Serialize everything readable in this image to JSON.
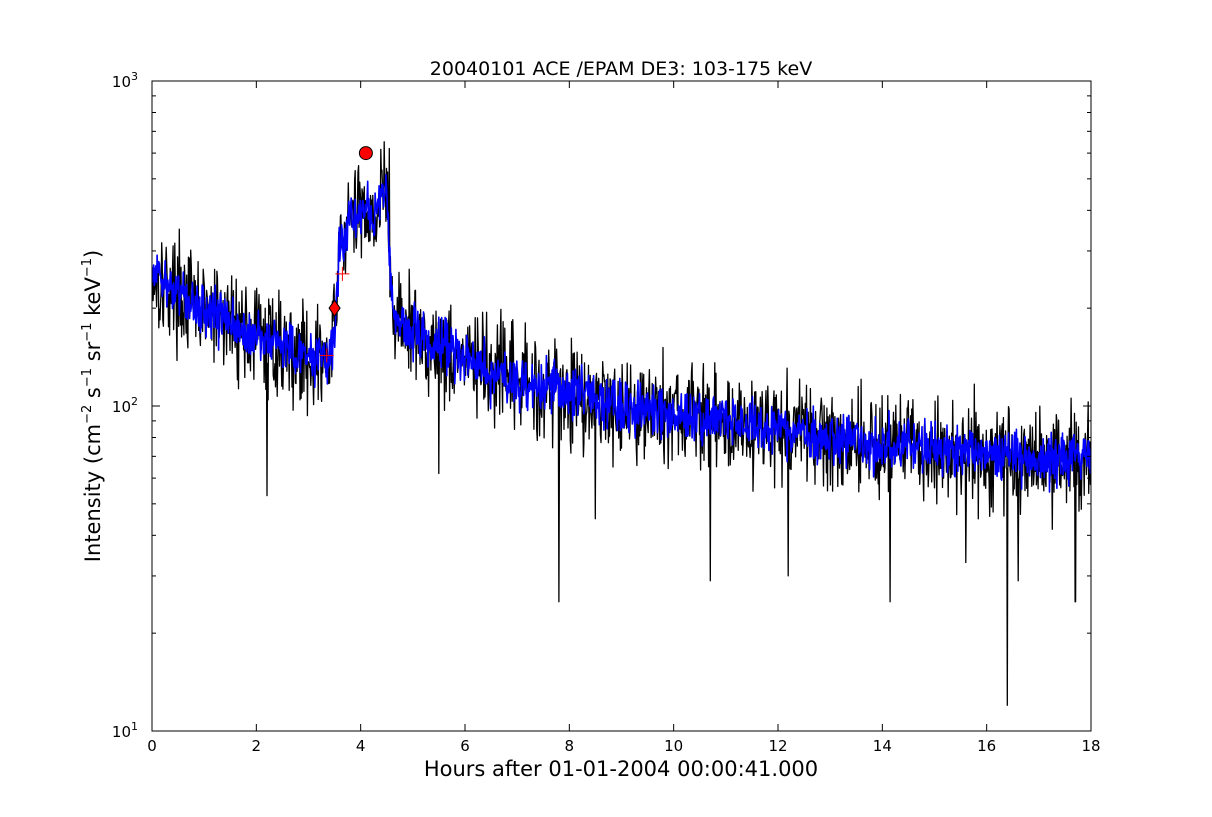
{
  "chart_data": {
    "type": "line",
    "title": "20040101 ACE /EPAM DE3: 103-175 keV",
    "xlabel": "Hours after 01-01-2004 00:00:41.000",
    "ylabel": {
      "prefix": "Intensity (cm",
      "exp1": "−2",
      "mid1": " s",
      "exp2": "−1",
      "mid2": " sr",
      "exp3": "−1",
      "mid3": " keV",
      "exp4": "−1",
      "suffix": ")"
    },
    "xlim": [
      0,
      18
    ],
    "ylim": [
      10,
      1000
    ],
    "yscale": "log",
    "x_ticks": [
      "0",
      "2",
      "4",
      "6",
      "8",
      "10",
      "12",
      "14",
      "16",
      "18"
    ],
    "y_ticks": [
      {
        "base": "10",
        "exp": "1"
      },
      {
        "base": "10",
        "exp": "2"
      },
      {
        "base": "10",
        "exp": "3"
      }
    ],
    "grid": false,
    "series": [
      {
        "color": "#000000",
        "x": [
          0,
          0.1,
          0.2,
          0.3,
          0.4,
          0.5,
          0.6,
          0.7,
          0.8,
          0.9,
          1.0,
          1.2,
          1.4,
          1.6,
          1.8,
          2.0,
          2.2,
          2.4,
          2.6,
          2.8,
          3.0,
          3.2,
          3.4,
          3.5,
          3.6,
          3.7,
          3.8,
          3.9,
          4.0,
          4.1,
          4.2,
          4.3,
          4.4,
          4.5,
          4.6,
          4.7,
          4.8,
          5.0,
          5.2,
          5.4,
          5.6,
          5.8,
          6.0,
          6.5,
          7.0,
          7.5,
          8.0,
          8.5,
          9.0,
          9.5,
          10.0,
          10.5,
          11.0,
          11.5,
          12.0,
          12.5,
          13.0,
          13.5,
          14.0,
          14.5,
          15.0,
          15.5,
          16.0,
          16.5,
          17.0,
          17.5,
          18.0
        ],
        "values": [
          250,
          245,
          240,
          235,
          230,
          225,
          215,
          210,
          205,
          200,
          195,
          190,
          185,
          180,
          170,
          165,
          158,
          155,
          150,
          145,
          140,
          138,
          140,
          165,
          330,
          345,
          370,
          380,
          400,
          420,
          380,
          400,
          440,
          460,
          200,
          185,
          180,
          170,
          160,
          155,
          150,
          145,
          140,
          125,
          120,
          115,
          110,
          105,
          100,
          97,
          95,
          93,
          90,
          87,
          85,
          82,
          80,
          78,
          76,
          75,
          73,
          72,
          71,
          70,
          69,
          68,
          67
        ],
        "noise": 0.18,
        "spikes": [
          {
            "x": 2.2,
            "y": 53
          },
          {
            "x": 4.55,
            "y": 620
          },
          {
            "x": 5.5,
            "y": 62
          },
          {
            "x": 7.8,
            "y": 25
          },
          {
            "x": 8.5,
            "y": 45
          },
          {
            "x": 10.7,
            "y": 29
          },
          {
            "x": 12.2,
            "y": 30
          },
          {
            "x": 14.15,
            "y": 25
          },
          {
            "x": 15.6,
            "y": 33
          },
          {
            "x": 16.4,
            "y": 12
          },
          {
            "x": 16.6,
            "y": 29
          },
          {
            "x": 17.7,
            "y": 25
          }
        ]
      },
      {
        "color": "#0000ff",
        "x": [
          0,
          0.1,
          0.2,
          0.3,
          0.4,
          0.5,
          0.6,
          0.7,
          0.8,
          0.9,
          1.0,
          1.2,
          1.4,
          1.6,
          1.8,
          2.0,
          2.2,
          2.4,
          2.6,
          2.8,
          3.0,
          3.2,
          3.4,
          3.5,
          3.6,
          3.7,
          3.8,
          3.9,
          4.0,
          4.1,
          4.2,
          4.3,
          4.4,
          4.5,
          4.6,
          4.7,
          4.8,
          5.0,
          5.2,
          5.4,
          5.6,
          5.8,
          6.0,
          6.5,
          7.0,
          7.5,
          8.0,
          8.5,
          9.0,
          9.5,
          10.0,
          10.5,
          11.0,
          11.5,
          12.0,
          12.5,
          13.0,
          13.5,
          14.0,
          14.5,
          15.0,
          15.5,
          16.0,
          16.5,
          17.0,
          17.5,
          18.0
        ],
        "values": [
          250,
          245,
          240,
          235,
          230,
          225,
          215,
          210,
          205,
          200,
          195,
          190,
          185,
          180,
          170,
          165,
          158,
          155,
          150,
          145,
          140,
          138,
          140,
          165,
          330,
          345,
          370,
          380,
          400,
          420,
          380,
          400,
          440,
          460,
          200,
          185,
          180,
          170,
          160,
          155,
          150,
          145,
          140,
          125,
          120,
          115,
          110,
          105,
          100,
          97,
          95,
          93,
          90,
          87,
          85,
          82,
          80,
          78,
          76,
          75,
          73,
          72,
          71,
          70,
          69,
          68,
          67
        ],
        "noise": 0.09
      }
    ],
    "markers": [
      {
        "shape": "circle",
        "x": 4.1,
        "y": 600,
        "color": "#ff0000"
      },
      {
        "shape": "diamond",
        "x": 3.5,
        "y": 200,
        "color": "#ff0000"
      },
      {
        "shape": "plus",
        "x": 3.65,
        "y": 255,
        "color": "#ff0000"
      },
      {
        "shape": "plus",
        "x": 3.35,
        "y": 143,
        "color": "#ff0000"
      }
    ]
  }
}
